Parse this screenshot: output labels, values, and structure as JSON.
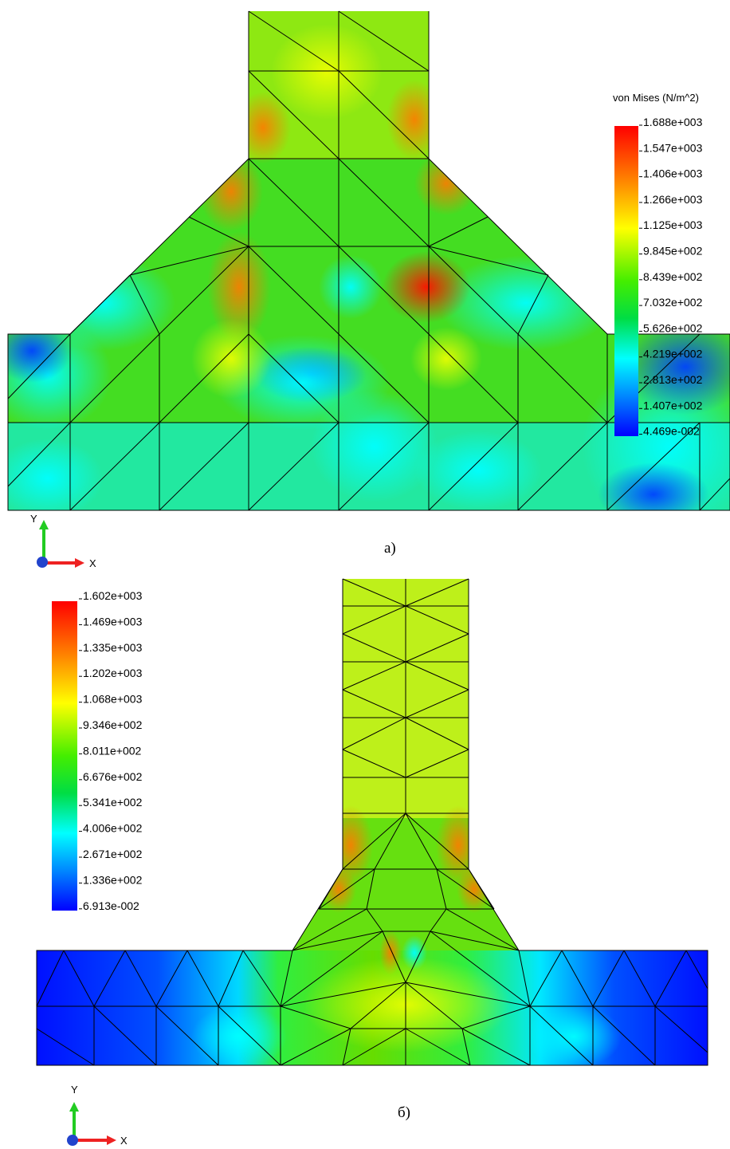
{
  "figure_a": {
    "legend_title": "von Mises (N/m^2)",
    "legend_values": [
      "1.688e+003",
      "1.547e+003",
      "1.406e+003",
      "1.266e+003",
      "1.125e+003",
      "9.845e+002",
      "8.439e+002",
      "7.032e+002",
      "5.626e+002",
      "4.219e+002",
      "2.813e+002",
      "1.407e+002",
      "4.469e-002"
    ],
    "caption": "a)",
    "axis": {
      "y": "Y",
      "x": "X"
    }
  },
  "figure_b": {
    "legend_values": [
      "1.602e+003",
      "1.469e+003",
      "1.335e+003",
      "1.202e+003",
      "1.068e+003",
      "9.346e+002",
      "8.011e+002",
      "6.676e+002",
      "5.341e+002",
      "4.006e+002",
      "2.671e+002",
      "1.336e+002",
      "6.913e-002"
    ],
    "caption": "б)",
    "axis": {
      "y": "Y",
      "x": "X"
    }
  },
  "colors": {
    "colormap": [
      "#ff0000",
      "#ff8000",
      "#ffff00",
      "#80ff00",
      "#00dd00",
      "#00ffff",
      "#0080ff",
      "#0000ff"
    ],
    "axis_y": "#22cc22",
    "axis_x": "#ee2222",
    "axis_origin": "#2244cc"
  }
}
